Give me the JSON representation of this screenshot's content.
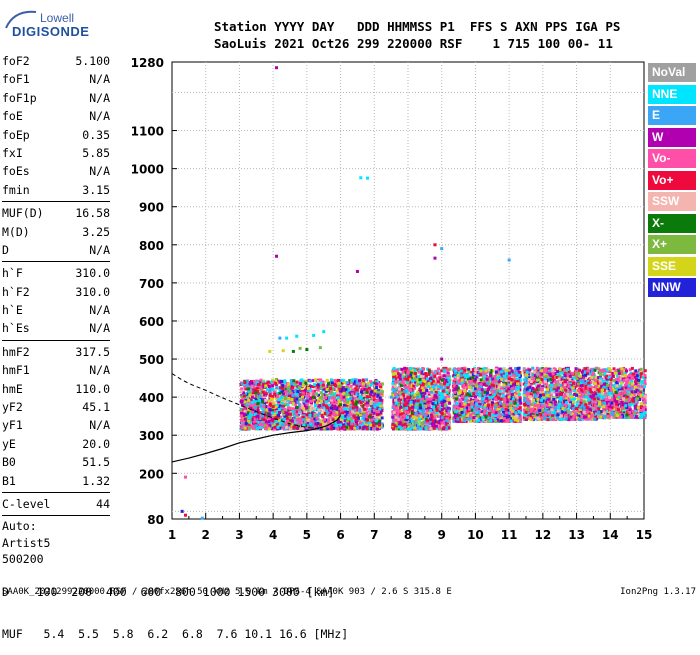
{
  "logo": {
    "line1": "Lowell",
    "line2": "DIGISONDE"
  },
  "header": {
    "line1": "Station YYYY DAY   DDD HHMMSS P1  FFS S AXN PPS IGA PS",
    "line2": "SaoLuis 2021 Oct26 299 220000 RSF    1 715 100 00- 11"
  },
  "params": [
    {
      "label": "foF2",
      "value": "5.100"
    },
    {
      "label": "foF1",
      "value": "N/A"
    },
    {
      "label": "foF1p",
      "value": "N/A"
    },
    {
      "label": "foE",
      "value": "N/A"
    },
    {
      "label": "foEp",
      "value": "0.35"
    },
    {
      "label": "fxI",
      "value": "5.85"
    },
    {
      "label": "foEs",
      "value": "N/A"
    },
    {
      "label": "fmin",
      "value": "3.15"
    },
    {
      "label": "MUF(D)",
      "value": "16.58"
    },
    {
      "label": "M(D)",
      "value": "3.25"
    },
    {
      "label": "D",
      "value": "N/A"
    },
    {
      "label": "h`F",
      "value": "310.0"
    },
    {
      "label": "h`F2",
      "value": "310.0"
    },
    {
      "label": "h`E",
      "value": "N/A"
    },
    {
      "label": "h`Es",
      "value": "N/A"
    },
    {
      "label": "hmF2",
      "value": "317.5"
    },
    {
      "label": "hmF1",
      "value": "N/A"
    },
    {
      "label": "hmE",
      "value": "110.0"
    },
    {
      "label": "yF2",
      "value": "45.1"
    },
    {
      "label": "yF1",
      "value": "N/A"
    },
    {
      "label": "yE",
      "value": "20.0"
    },
    {
      "label": "B0",
      "value": "51.5"
    },
    {
      "label": "B1",
      "value": "1.32"
    },
    {
      "label": "C-level",
      "value": "44"
    }
  ],
  "auto": [
    "Auto:",
    "Artist5",
    "500200"
  ],
  "legend": [
    {
      "label": "NoVal",
      "color": "#a0a0a0"
    },
    {
      "label": "NNE",
      "color": "#00e5ff"
    },
    {
      "label": "E",
      "color": "#3aa6f5"
    },
    {
      "label": "W",
      "color": "#b000b0"
    },
    {
      "label": "Vo-",
      "color": "#ff4fa8"
    },
    {
      "label": "Vo+",
      "color": "#ee0a3c"
    },
    {
      "label": "SSW",
      "color": "#f4b4b0"
    },
    {
      "label": "X-",
      "color": "#0a7a0a"
    },
    {
      "label": "X+",
      "color": "#7db83f"
    },
    {
      "label": "SSE",
      "color": "#d4d41a"
    },
    {
      "label": "NNW",
      "color": "#2222d8"
    }
  ],
  "dmuf": {
    "line1": "D    100  200  400  600  800 1000 1500 3000 [km]",
    "line2": "MUF   5.4  5.5  5.8  6.2  6.8  7.6 10.1 16.6 [MHz]"
  },
  "footer": "SAA0K_2021299220000.RSF / 280fx256h 50 kHz 5.0 km / DPS-4 SAA0K 903 / 2.6 S 315.8 E",
  "version": "Ion2Png 1.3.17",
  "chart_data": {
    "type": "scatter",
    "title": "",
    "xlabel": "",
    "ylabel": "",
    "xlim": [
      1,
      15
    ],
    "ylim": [
      80,
      1280
    ],
    "x_ticks": [
      1,
      2,
      3,
      4,
      5,
      6,
      7,
      8,
      9,
      10,
      11,
      12,
      13,
      14,
      15
    ],
    "y_ticks": [
      80,
      200,
      300,
      400,
      500,
      600,
      700,
      800,
      900,
      1000,
      1100,
      1280
    ],
    "grid": true,
    "series": [
      {
        "name": "NoVal",
        "color": "#a0a0a0",
        "points": [
          [
            6.5,
            395
          ],
          [
            8.5,
            375
          ],
          [
            12.8,
            360
          ]
        ]
      },
      {
        "name": "NNE",
        "color": "#00e5ff",
        "points": [
          [
            4.4,
            555
          ],
          [
            4.7,
            560
          ],
          [
            5.2,
            562
          ],
          [
            5.5,
            572
          ],
          [
            6.6,
            976
          ],
          [
            6.8,
            975
          ],
          [
            12.5,
            395
          ],
          [
            13.3,
            400
          ],
          [
            14.0,
            410
          ],
          [
            14.6,
            380
          ],
          [
            4.0,
            420
          ],
          [
            10.5,
            400
          ]
        ]
      },
      {
        "name": "E",
        "color": "#3aa6f5",
        "points": [
          [
            1.9,
            82
          ],
          [
            9.0,
            790
          ],
          [
            11.0,
            760
          ],
          [
            3.5,
            325
          ],
          [
            12.9,
            370
          ],
          [
            13.8,
            385
          ],
          [
            4.2,
            555
          ],
          [
            7.5,
            400
          ]
        ]
      },
      {
        "name": "W",
        "color": "#b000b0",
        "points": [
          [
            4.1,
            1265
          ],
          [
            4.1,
            770
          ],
          [
            3.8,
            335
          ],
          [
            5.0,
            390
          ],
          [
            6.8,
            385
          ],
          [
            8.5,
            410
          ],
          [
            9.0,
            500
          ],
          [
            10.7,
            440
          ],
          [
            12.2,
            460
          ],
          [
            8.8,
            765
          ],
          [
            6.5,
            730
          ]
        ]
      },
      {
        "name": "Vo-",
        "color": "#ff4fa8",
        "points": [
          [
            1.4,
            190
          ],
          [
            3.4,
            360
          ],
          [
            4.5,
            370
          ],
          [
            5.8,
            360
          ],
          [
            6.3,
            355
          ],
          [
            7.0,
            365
          ],
          [
            8.0,
            360
          ],
          [
            9.5,
            370
          ],
          [
            10.3,
            365
          ],
          [
            11.2,
            370
          ],
          [
            12.0,
            375
          ],
          [
            5.3,
            345
          ]
        ]
      },
      {
        "name": "Vo+",
        "color": "#ee0a3c",
        "points": [
          [
            1.4,
            90
          ],
          [
            4.0,
            375
          ],
          [
            5.5,
            380
          ],
          [
            6.8,
            340
          ],
          [
            8.3,
            390
          ],
          [
            9.8,
            380
          ],
          [
            11.5,
            360
          ],
          [
            13.0,
            370
          ],
          [
            8.8,
            800
          ]
        ]
      },
      {
        "name": "SSW",
        "color": "#f4b4b0",
        "points": [
          [
            7.8,
            400
          ],
          [
            11.6,
            445
          ],
          [
            12.3,
            470
          ],
          [
            13.5,
            420
          ],
          [
            14.2,
            430
          ]
        ]
      },
      {
        "name": "X-",
        "color": "#0a7a0a",
        "points": [
          [
            4.6,
            520
          ],
          [
            5.0,
            525
          ],
          [
            4.2,
            410
          ],
          [
            5.2,
            400
          ],
          [
            6.0,
            380
          ]
        ]
      },
      {
        "name": "X+",
        "color": "#7db83f",
        "points": [
          [
            4.8,
            528
          ],
          [
            5.4,
            530
          ],
          [
            4.5,
            415
          ],
          [
            5.6,
            405
          ]
        ]
      },
      {
        "name": "SSE",
        "color": "#d4d41a",
        "points": [
          [
            3.9,
            520
          ],
          [
            4.3,
            522
          ],
          [
            4.9,
            430
          ],
          [
            5.6,
            420
          ],
          [
            6.1,
            410
          ],
          [
            8.2,
            405
          ],
          [
            8.7,
            420
          ]
        ]
      },
      {
        "name": "NNW",
        "color": "#2222d8",
        "points": [
          [
            1.3,
            100
          ],
          [
            3.2,
            330
          ],
          [
            4.7,
            395
          ],
          [
            6.2,
            360
          ],
          [
            9.6,
            360
          ]
        ]
      }
    ],
    "clouds": [
      {
        "x": [
          3.0,
          7.2
        ],
        "y": [
          320,
          450
        ],
        "n": 2600
      },
      {
        "x": [
          7.5,
          9.2
        ],
        "y": [
          320,
          480
        ],
        "n": 1400
      },
      {
        "x": [
          9.3,
          11.3
        ],
        "y": [
          340,
          480
        ],
        "n": 1500
      },
      {
        "x": [
          11.4,
          13.6
        ],
        "y": [
          345,
          480
        ],
        "n": 1500
      },
      {
        "x": [
          13.6,
          15.0
        ],
        "y": [
          350,
          480
        ],
        "n": 900
      }
    ],
    "profile_solid": [
      [
        1.0,
        230
      ],
      [
        1.5,
        240
      ],
      [
        2.0,
        252
      ],
      [
        2.5,
        265
      ],
      [
        3.0,
        280
      ],
      [
        3.5,
        290
      ],
      [
        4.0,
        300
      ],
      [
        4.5,
        307
      ],
      [
        5.0,
        312
      ],
      [
        5.3,
        317
      ],
      [
        5.6,
        325
      ],
      [
        5.9,
        340
      ],
      [
        6.0,
        352
      ]
    ],
    "profile_dashed": [
      [
        1.0,
        462
      ],
      [
        1.3,
        445
      ],
      [
        1.6,
        432
      ],
      [
        2.0,
        418
      ],
      [
        2.5,
        398
      ],
      [
        3.0,
        380
      ],
      [
        3.5,
        362
      ],
      [
        4.0,
        345
      ],
      [
        4.5,
        330
      ],
      [
        5.0,
        320
      ],
      [
        5.3,
        318
      ]
    ]
  }
}
